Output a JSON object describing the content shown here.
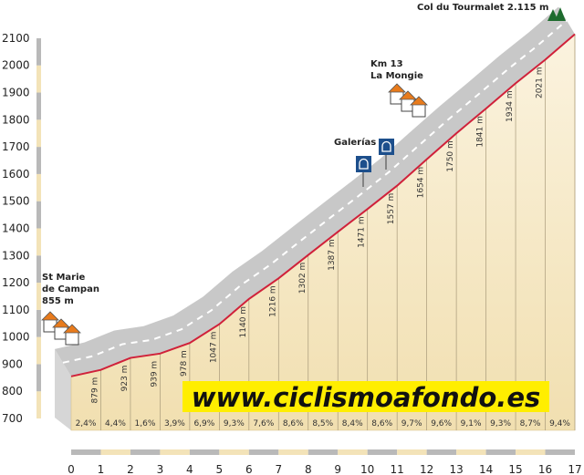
{
  "chart_data": {
    "type": "area",
    "title": "Col du Tourmalet",
    "xlabel": "km",
    "ylabel": "m",
    "x": [
      0,
      1,
      2,
      3,
      4,
      5,
      6,
      7,
      8,
      9,
      10,
      11,
      12,
      13,
      14,
      15,
      16,
      17
    ],
    "elevations": [
      855,
      879,
      923,
      939,
      978,
      1047,
      1140,
      1216,
      1302,
      1387,
      1471,
      1557,
      1654,
      1750,
      1841,
      1934,
      2021,
      2115
    ],
    "elevation_labels": [
      "879 m",
      "923 m",
      "939 m",
      "978 m",
      "1047 m",
      "1140 m",
      "1216 m",
      "1302 m",
      "1387 m",
      "1471 m",
      "1557 m",
      "1654 m",
      "1750 m",
      "1841 m",
      "1934 m",
      "2021 m"
    ],
    "grades": [
      "2,4%",
      "4,4%",
      "1,6%",
      "3,9%",
      "6,9%",
      "9,3%",
      "7,6%",
      "8,6%",
      "8,5%",
      "8,4%",
      "8,6%",
      "9,7%",
      "9,6%",
      "9,1%",
      "9,3%",
      "8,7%",
      "9,4%"
    ],
    "xlim": [
      0,
      17
    ],
    "ylim": [
      700,
      2100
    ],
    "y_ticks": [
      "700",
      "800",
      "900",
      "1000",
      "1100",
      "1200",
      "1300",
      "1400",
      "1500",
      "1600",
      "1700",
      "1800",
      "1900",
      "2000",
      "2100"
    ],
    "x_ticks": [
      "0",
      "1",
      "2",
      "3",
      "4",
      "5",
      "6",
      "7",
      "8",
      "9",
      "10",
      "11",
      "12",
      "13",
      "14",
      "15",
      "16",
      "17"
    ],
    "annotations": {
      "start": [
        "St Marie",
        "de Campan",
        "855 m"
      ],
      "galerias": "Galerías",
      "la_mongie": [
        "Km 13",
        "La Mongie"
      ],
      "summit": "Col du Tourmalet 2.115 m"
    },
    "watermark": "www.ciclismoafondo.es",
    "colors": {
      "profile_line": "#d0213a",
      "road": "#c8c8c8",
      "ground": "#f6e8c4",
      "watermark_bg": "#ffee00",
      "tree": "#1e6b2e",
      "roof": "#e87b1c",
      "sign": "#1d4f8c"
    }
  }
}
